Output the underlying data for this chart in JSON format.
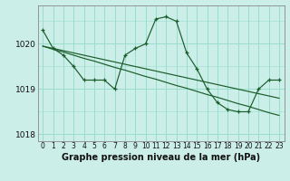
{
  "title": "Graphe pression niveau de la mer (hPa)",
  "bg_color": "#cceee8",
  "grid_color": "#99ddcc",
  "line_color": "#1a5c2a",
  "x_labels": [
    "0",
    "1",
    "2",
    "3",
    "4",
    "5",
    "6",
    "7",
    "8",
    "9",
    "10",
    "11",
    "12",
    "13",
    "14",
    "15",
    "16",
    "17",
    "18",
    "19",
    "20",
    "21",
    "22",
    "23"
  ],
  "hours": [
    0,
    1,
    2,
    3,
    4,
    5,
    6,
    7,
    8,
    9,
    10,
    11,
    12,
    13,
    14,
    15,
    16,
    17,
    18,
    19,
    20,
    21,
    22,
    23
  ],
  "series1": [
    1020.3,
    1019.9,
    1019.75,
    1019.5,
    1019.2,
    1019.2,
    1019.2,
    1019.0,
    1019.75,
    1019.9,
    1020.0,
    1020.55,
    1020.6,
    1020.5,
    1019.8,
    1019.45,
    1019.0,
    1018.7,
    1018.55,
    1018.5,
    1018.5,
    1019.0,
    1019.2,
    1019.2
  ],
  "series2": [
    1019.95,
    1019.9,
    1019.85,
    1019.8,
    1019.75,
    1019.7,
    1019.65,
    1019.6,
    1019.55,
    1019.5,
    1019.45,
    1019.4,
    1019.35,
    1019.3,
    1019.25,
    1019.2,
    1019.15,
    1019.1,
    1019.05,
    1019.0,
    1018.95,
    1018.9,
    1018.85,
    1018.8
  ],
  "series3": [
    1019.95,
    1019.88,
    1019.82,
    1019.75,
    1019.68,
    1019.62,
    1019.55,
    1019.48,
    1019.42,
    1019.35,
    1019.28,
    1019.22,
    1019.15,
    1019.08,
    1019.02,
    1018.95,
    1018.88,
    1018.82,
    1018.75,
    1018.68,
    1018.62,
    1018.55,
    1018.48,
    1018.42
  ],
  "ylim": [
    1017.85,
    1020.85
  ],
  "yticks": [
    1018,
    1019,
    1020
  ],
  "ylabel_fontsize": 6.5,
  "xlabel_fontsize": 5.5,
  "title_fontsize": 7.0
}
